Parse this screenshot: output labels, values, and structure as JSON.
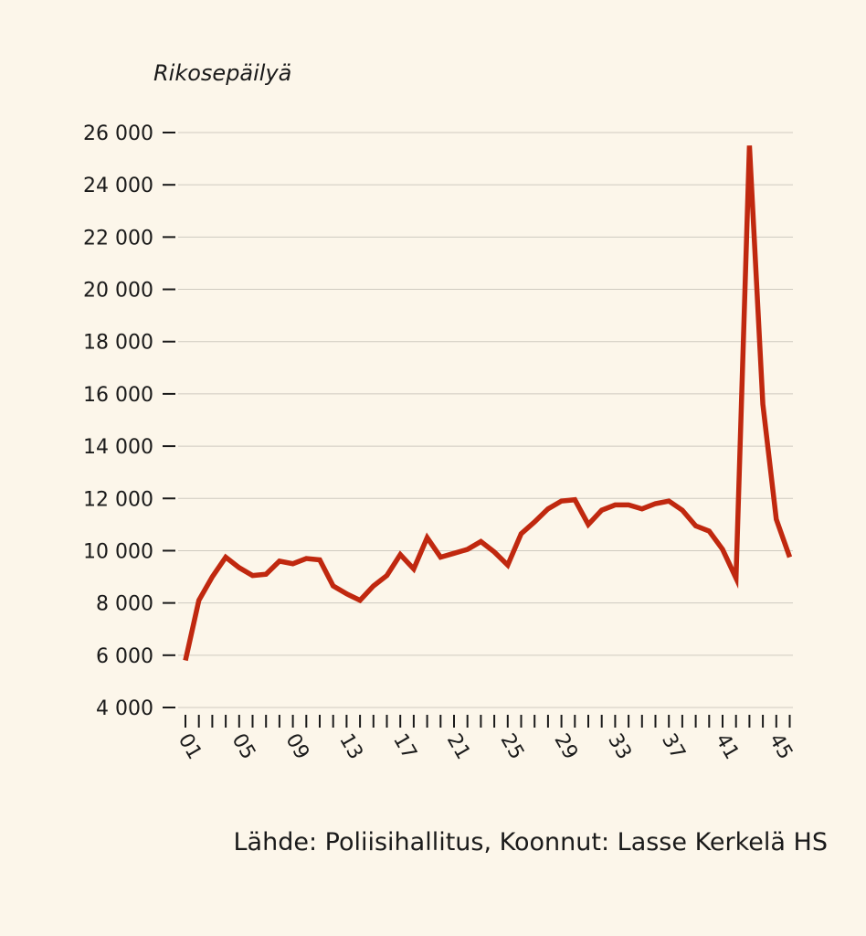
{
  "source": "Lähde: Poliisihallitus, Koonnut: Lasse Kerkelä HS",
  "colors": {
    "background": "#fcf6ea",
    "line": "#c0280f",
    "grid": "#cfcac0",
    "axis": "#1a1a1a"
  },
  "chart_data": {
    "type": "line",
    "ylabel": "Rikosepäilyä",
    "xlabel": "",
    "ylim": [
      4000,
      26000
    ],
    "yticks": [
      4000,
      6000,
      8000,
      10000,
      12000,
      14000,
      16000,
      18000,
      20000,
      22000,
      24000,
      26000
    ],
    "ytick_labels": [
      "4 000",
      "6 000",
      "8 000",
      "10 000",
      "12 000",
      "14 000",
      "16 000",
      "18 000",
      "20 000",
      "22 000",
      "24 000",
      "26 000"
    ],
    "xticks": [
      1,
      5,
      9,
      13,
      17,
      21,
      25,
      29,
      33,
      37,
      41,
      45
    ],
    "xtick_labels": [
      "01",
      "05",
      "09",
      "13",
      "17",
      "21",
      "25",
      "29",
      "33",
      "37",
      "41",
      "45"
    ],
    "grid": true,
    "x": [
      1,
      2,
      3,
      4,
      5,
      6,
      7,
      8,
      9,
      10,
      11,
      12,
      13,
      14,
      15,
      16,
      17,
      18,
      19,
      20,
      21,
      22,
      23,
      24,
      25,
      26,
      27,
      28,
      29,
      30,
      31,
      32,
      33,
      34,
      35,
      36,
      37,
      38,
      39,
      40,
      41,
      42,
      43,
      44,
      45,
      46
    ],
    "series": [
      {
        "values": [
          5800,
          8100,
          9000,
          9750,
          9350,
          9050,
          9100,
          9600,
          9500,
          9700,
          9650,
          8650,
          8350,
          8100,
          8650,
          9050,
          9850,
          9300,
          10500,
          9750,
          9900,
          10050,
          10350,
          9950,
          9450,
          10650,
          11100,
          11600,
          11900,
          11950,
          11000,
          11550,
          11750,
          11750,
          11600,
          11800,
          11900,
          11550,
          10950,
          10750,
          10050,
          8950,
          25500,
          15600,
          11200,
          9750
        ]
      }
    ]
  }
}
